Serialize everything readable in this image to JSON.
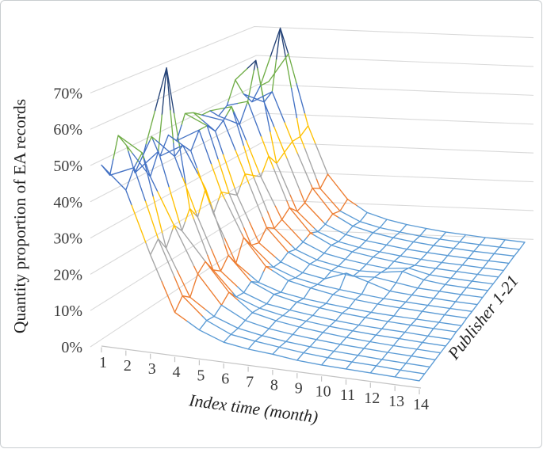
{
  "figure": {
    "background": "#ffffff",
    "border_color": "#c9cdd0",
    "grid_color": "#d9d9d9",
    "axis_line_color": "#c3c3c3",
    "text_color": "#3a3a3a"
  },
  "chart_data": {
    "type": "surface-wireframe-3d",
    "title": "",
    "y_axis": {
      "label": "Quantity proportion of EA records",
      "ticks": [
        "0%",
        "10%",
        "20%",
        "30%",
        "40%",
        "50%",
        "60%",
        "70%"
      ],
      "min": 0,
      "max": 0.7,
      "grid": true
    },
    "x_axis": {
      "label": "Index time (month)",
      "ticks": [
        "1",
        "2",
        "3",
        "4",
        "5",
        "6",
        "7",
        "8",
        "9",
        "10",
        "11",
        "12",
        "13",
        "14"
      ]
    },
    "depth_axis": {
      "label": "Publisher 1-21",
      "series_count": 21
    },
    "bands": [
      {
        "range": "0%-10%",
        "color": "#5B9BD5"
      },
      {
        "range": "10%-20%",
        "color": "#ED7D31"
      },
      {
        "range": "20%-30%",
        "color": "#A5A5A5"
      },
      {
        "range": "30%-40%",
        "color": "#FFC000"
      },
      {
        "range": "40%-50%",
        "color": "#4472C4"
      },
      {
        "range": "50%-60%",
        "color": "#70AD47"
      },
      {
        "range": "60%-80%",
        "color": "#264478"
      }
    ],
    "months": [
      1,
      2,
      3,
      4,
      5,
      6,
      7,
      8,
      9,
      10,
      11,
      12,
      13,
      14
    ],
    "publishers": [
      1,
      2,
      3,
      4,
      5,
      6,
      7,
      8,
      9,
      10,
      11,
      12,
      13,
      14,
      15,
      16,
      17,
      18,
      19,
      20,
      21
    ],
    "matrix": [
      [
        0.5,
        0.44,
        0.27,
        0.12,
        0.08,
        0.055,
        0.045,
        0.04,
        0.032,
        0.028,
        0.026,
        0.024,
        0.022,
        0.02
      ],
      [
        0.46,
        0.49,
        0.3,
        0.15,
        0.09,
        0.06,
        0.05,
        0.042,
        0.035,
        0.03,
        0.027,
        0.025,
        0.022,
        0.02
      ],
      [
        0.56,
        0.52,
        0.26,
        0.13,
        0.085,
        0.06,
        0.048,
        0.04,
        0.034,
        0.03,
        0.027,
        0.024,
        0.022,
        0.02
      ],
      [
        0.52,
        0.44,
        0.31,
        0.18,
        0.1,
        0.065,
        0.05,
        0.042,
        0.036,
        0.031,
        0.028,
        0.025,
        0.023,
        0.021
      ],
      [
        0.43,
        0.5,
        0.28,
        0.2,
        0.12,
        0.07,
        0.055,
        0.045,
        0.038,
        0.032,
        0.028,
        0.025,
        0.023,
        0.021
      ],
      [
        0.47,
        0.73,
        0.33,
        0.16,
        0.09,
        0.065,
        0.052,
        0.044,
        0.037,
        0.032,
        0.028,
        0.026,
        0.023,
        0.021
      ],
      [
        0.51,
        0.46,
        0.29,
        0.14,
        0.085,
        0.06,
        0.05,
        0.042,
        0.035,
        0.03,
        0.027,
        0.025,
        0.022,
        0.02
      ],
      [
        0.44,
        0.48,
        0.36,
        0.17,
        0.1,
        0.07,
        0.055,
        0.046,
        0.038,
        0.033,
        0.029,
        0.026,
        0.024,
        0.022
      ],
      [
        0.49,
        0.45,
        0.27,
        0.13,
        0.08,
        0.058,
        0.047,
        0.04,
        0.034,
        0.029,
        0.026,
        0.024,
        0.022,
        0.02
      ],
      [
        0.46,
        0.5,
        0.32,
        0.19,
        0.11,
        0.075,
        0.06,
        0.048,
        0.04,
        0.034,
        0.03,
        0.027,
        0.024,
        0.022
      ],
      [
        0.53,
        0.5,
        0.3,
        0.15,
        0.09,
        0.065,
        0.052,
        0.044,
        0.037,
        0.031,
        0.028,
        0.025,
        0.023,
        0.021
      ],
      [
        0.52,
        0.47,
        0.28,
        0.14,
        0.088,
        0.062,
        0.05,
        0.075,
        0.055,
        0.034,
        0.029,
        0.026,
        0.023,
        0.021
      ],
      [
        0.5,
        0.49,
        0.33,
        0.17,
        0.1,
        0.07,
        0.056,
        0.046,
        0.05,
        0.04,
        0.03,
        0.027,
        0.024,
        0.022
      ],
      [
        0.5,
        0.52,
        0.31,
        0.15,
        0.09,
        0.064,
        0.051,
        0.043,
        0.045,
        0.055,
        0.035,
        0.027,
        0.024,
        0.022
      ],
      [
        0.47,
        0.45,
        0.29,
        0.16,
        0.095,
        0.066,
        0.053,
        0.044,
        0.037,
        0.045,
        0.03,
        0.026,
        0.023,
        0.021
      ],
      [
        0.49,
        0.51,
        0.34,
        0.18,
        0.105,
        0.072,
        0.057,
        0.047,
        0.039,
        0.033,
        0.029,
        0.026,
        0.023,
        0.021
      ],
      [
        0.56,
        0.63,
        0.3,
        0.15,
        0.09,
        0.064,
        0.051,
        0.043,
        0.036,
        0.031,
        0.027,
        0.025,
        0.022,
        0.02
      ],
      [
        0.5,
        0.48,
        0.32,
        0.16,
        0.095,
        0.067,
        0.053,
        0.045,
        0.037,
        0.032,
        0.028,
        0.025,
        0.023,
        0.021
      ],
      [
        0.46,
        0.5,
        0.34,
        0.19,
        0.11,
        0.075,
        0.059,
        0.048,
        0.04,
        0.034,
        0.03,
        0.026,
        0.024,
        0.022
      ],
      [
        0.5,
        0.7,
        0.34,
        0.17,
        0.1,
        0.07,
        0.055,
        0.046,
        0.038,
        0.033,
        0.029,
        0.026,
        0.023,
        0.021
      ],
      [
        0.5,
        0.6,
        0.36,
        0.2,
        0.12,
        0.08,
        0.062,
        0.05,
        0.042,
        0.035,
        0.031,
        0.027,
        0.025,
        0.022
      ]
    ]
  }
}
